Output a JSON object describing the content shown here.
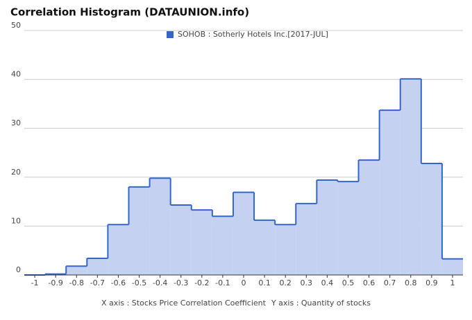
{
  "chart_data": {
    "type": "histogram",
    "title": "Correlation Histogram (DATAUNION.info)",
    "series_name": "SOHOB : Sotherly Hotels Inc.[2017-JUL]",
    "color": "#3366cc",
    "fill": "#c5d1f0",
    "bins": [
      -1.05,
      -0.95,
      -0.85,
      -0.75,
      -0.65,
      -0.55,
      -0.45,
      -0.35,
      -0.25,
      -0.15,
      -0.05,
      0.05,
      0.15,
      0.25,
      0.35,
      0.45,
      0.55,
      0.65,
      0.75,
      0.85,
      0.95,
      1.05
    ],
    "values": [
      0,
      0.2,
      1.8,
      3.4,
      10.3,
      18,
      19.8,
      14.3,
      13.3,
      12,
      16.9,
      11.2,
      10.3,
      14.6,
      19.4,
      19.1,
      23.5,
      33.7,
      40.1,
      22.8,
      3.3
    ],
    "xlim": [
      -1.05,
      1.05
    ],
    "xticks": [
      -1,
      -0.9,
      -0.8,
      -0.7,
      -0.6,
      -0.5,
      -0.4,
      -0.3,
      -0.2,
      -0.1,
      0,
      0.1,
      0.2,
      0.3,
      0.4,
      0.5,
      0.6,
      0.7,
      0.8,
      0.9,
      1
    ],
    "ylim": [
      0,
      50
    ],
    "yticks": [
      0,
      10,
      20,
      30,
      40,
      50
    ],
    "grid": true,
    "xlabel": "X axis : Stocks Price Correlation Coefficient",
    "ylabel": "Y axis : Quantity of stocks"
  }
}
